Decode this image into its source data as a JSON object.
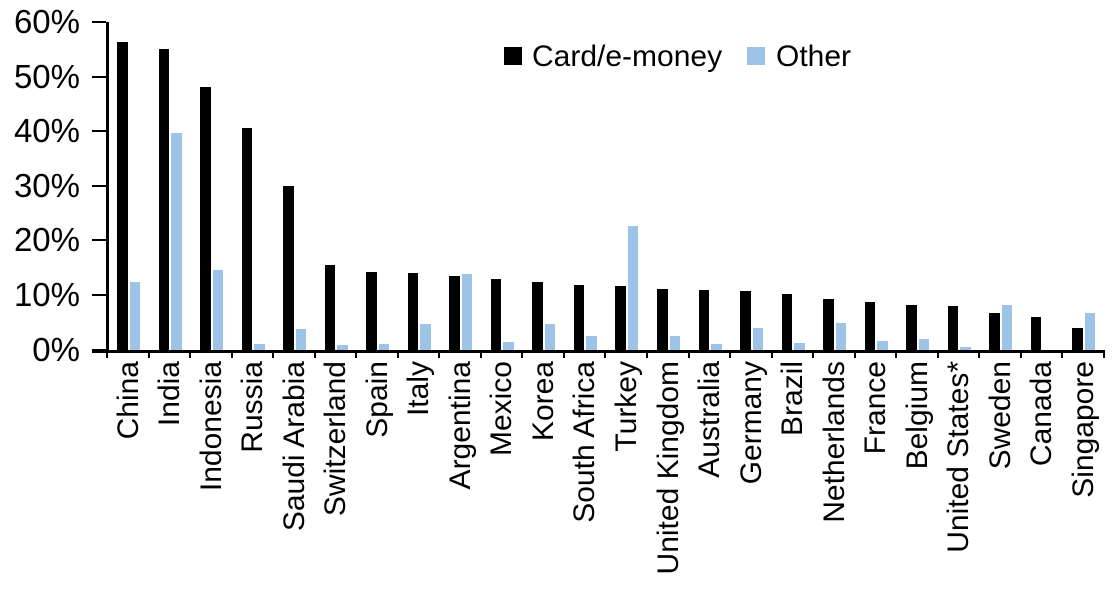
{
  "chart_data": {
    "type": "bar",
    "title": "",
    "xlabel": "",
    "ylabel": "",
    "ylim": [
      0,
      60
    ],
    "ytick_labels": [
      "0%",
      "10%",
      "20%",
      "30%",
      "40%",
      "50%",
      "60%"
    ],
    "ytick_values": [
      0,
      10,
      20,
      30,
      40,
      50,
      60
    ],
    "grid": false,
    "legend_position": "top-center",
    "categories": [
      "China",
      "India",
      "Indonesia",
      "Russia",
      "Saudi Arabia",
      "Switzerland",
      "Spain",
      "Italy",
      "Argentina",
      "Mexico",
      "Korea",
      "South Africa",
      "Turkey",
      "United Kingdom",
      "Australia",
      "Germany",
      "Brazil",
      "Netherlands",
      "France",
      "Belgium",
      "United States*",
      "Sweden",
      "Canada",
      "Singapore"
    ],
    "series": [
      {
        "name": "Card/e-money",
        "color": "#000000",
        "values": [
          56.3,
          55.0,
          48.2,
          40.6,
          29.9,
          15.5,
          14.2,
          14.1,
          13.5,
          13.0,
          12.3,
          11.8,
          11.7,
          11.0,
          10.9,
          10.7,
          10.1,
          9.3,
          8.7,
          8.2,
          7.9,
          6.6,
          5.9,
          3.9
        ]
      },
      {
        "name": "Other",
        "color": "#9DC3E6",
        "values": [
          12.3,
          39.7,
          14.5,
          1.0,
          3.8,
          0.8,
          1.0,
          4.6,
          13.9,
          1.3,
          4.6,
          2.4,
          22.6,
          2.4,
          1.0,
          4.0,
          1.2,
          4.9,
          1.6,
          2.0,
          0.4,
          8.1,
          0,
          6.7
        ]
      }
    ]
  }
}
